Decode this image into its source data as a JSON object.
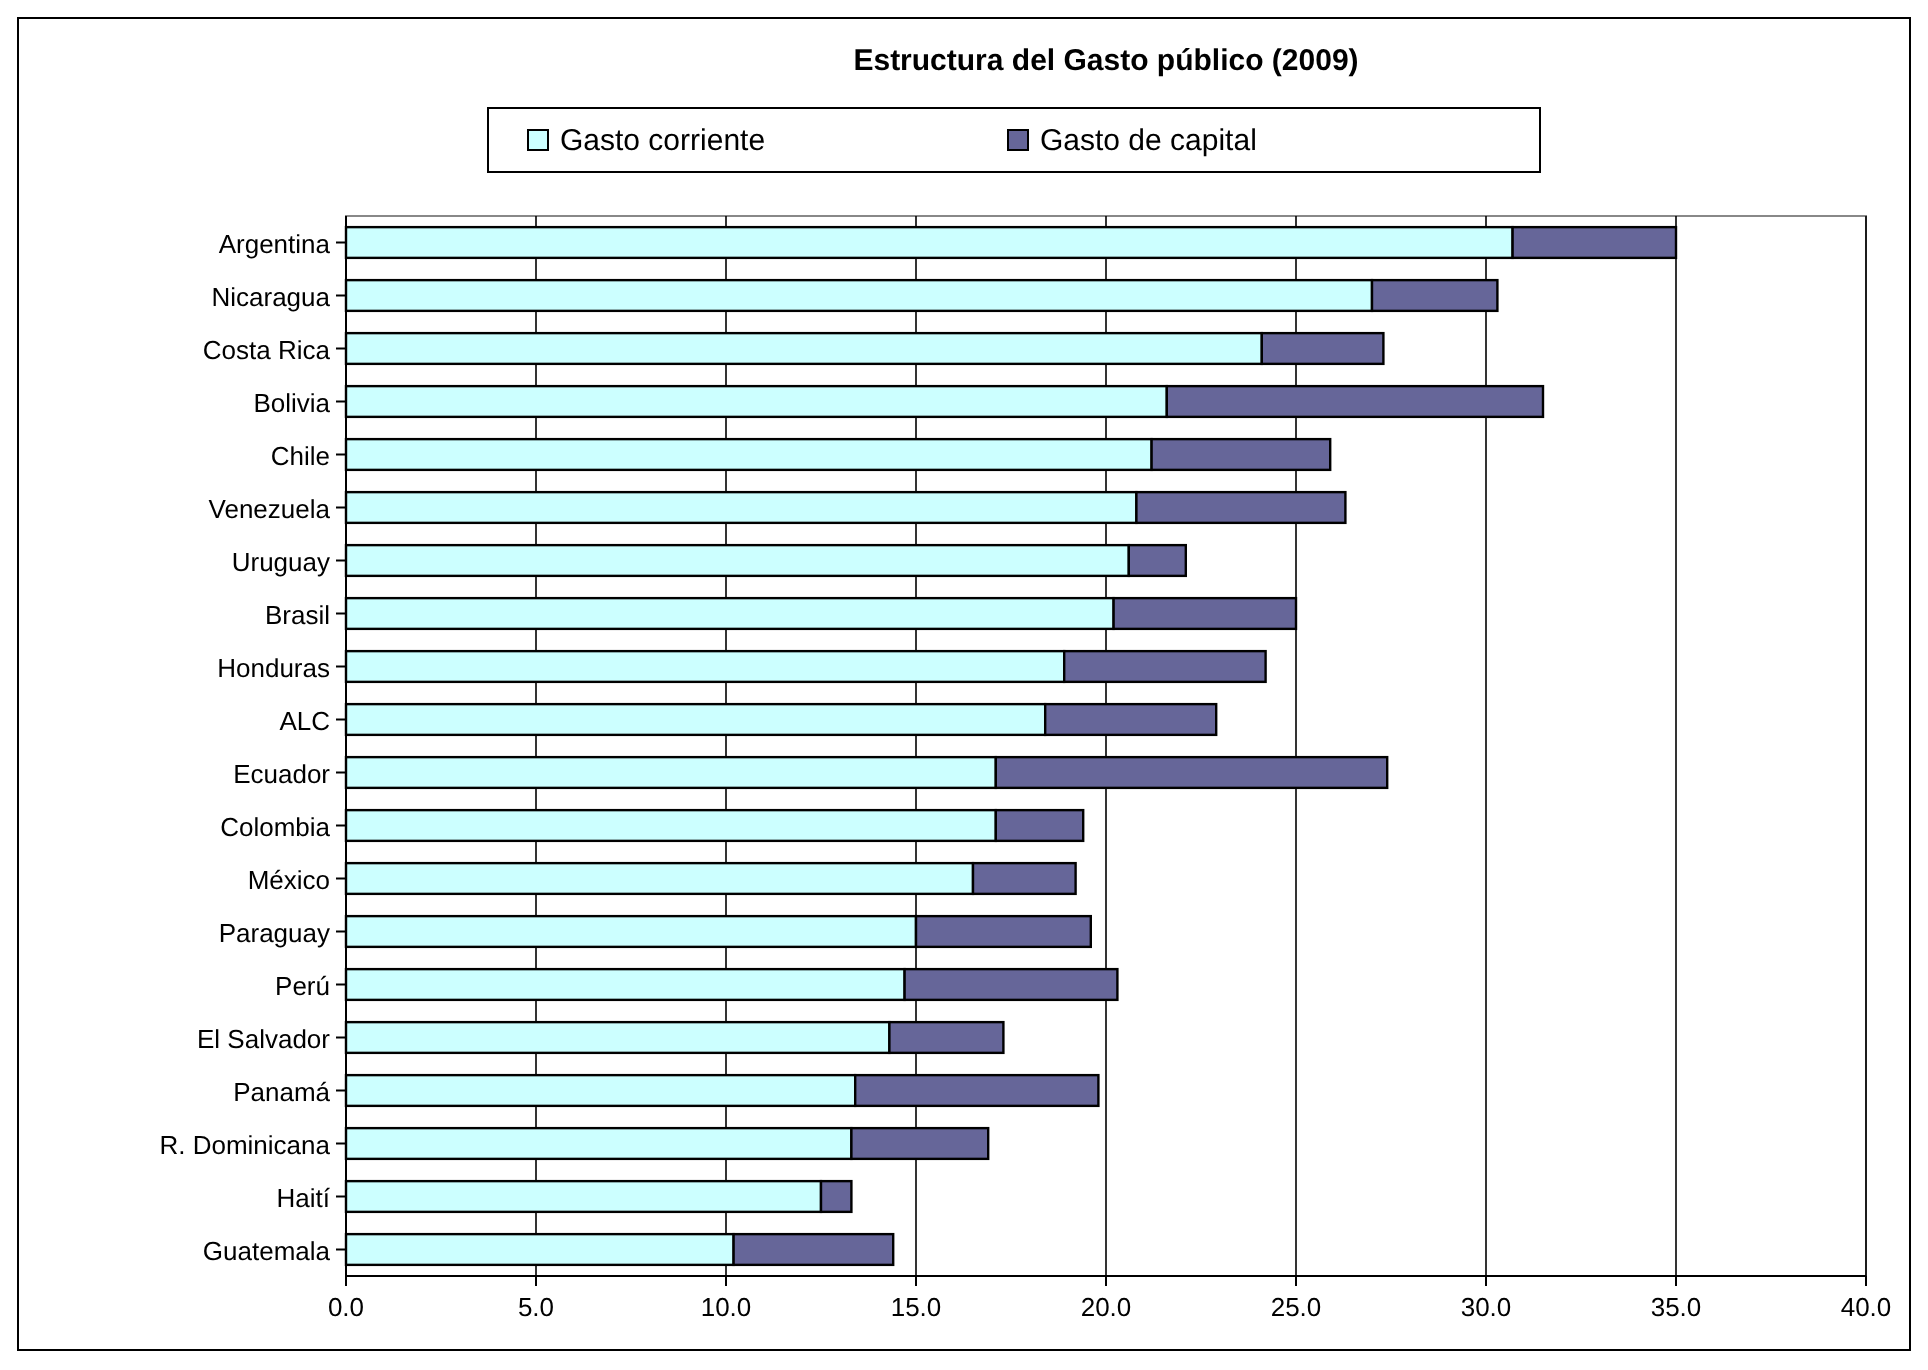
{
  "chart_data": {
    "type": "bar",
    "orientation": "horizontal",
    "stacked": true,
    "title": "Estructura del Gasto público (2009)",
    "categories": [
      "Argentina",
      "Nicaragua",
      "Costa Rica",
      "Bolivia",
      "Chile",
      "Venezuela",
      "Uruguay",
      "Brasil",
      "Honduras",
      "ALC",
      "Ecuador",
      "Colombia",
      "México",
      "Paraguay",
      "Perú",
      "El Salvador",
      "Panamá",
      "R. Dominicana",
      "Haití",
      "Guatemala"
    ],
    "series": [
      {
        "name": "Gasto corriente",
        "color": "#ccffff",
        "values": [
          30.7,
          27.0,
          24.1,
          21.6,
          21.2,
          20.8,
          20.6,
          20.2,
          18.9,
          18.4,
          17.1,
          17.1,
          16.5,
          15.0,
          14.7,
          14.3,
          13.4,
          13.3,
          12.5,
          10.2
        ]
      },
      {
        "name": "Gasto de capital",
        "color": "#666699",
        "values": [
          4.3,
          3.3,
          3.2,
          9.9,
          4.7,
          5.5,
          1.5,
          4.8,
          5.3,
          4.5,
          10.3,
          2.3,
          2.7,
          4.6,
          5.6,
          3.0,
          6.4,
          3.6,
          0.8,
          4.2
        ]
      }
    ],
    "xlim": [
      0,
      40
    ],
    "xticks": [
      {
        "value": 0,
        "label": "0.0"
      },
      {
        "value": 5,
        "label": "5.0"
      },
      {
        "value": 10,
        "label": "10.0"
      },
      {
        "value": 15,
        "label": "15.0"
      },
      {
        "value": 20,
        "label": "20.0"
      },
      {
        "value": 25,
        "label": "25.0"
      },
      {
        "value": 30,
        "label": "30.0"
      },
      {
        "value": 35,
        "label": "35.0"
      },
      {
        "value": 40,
        "label": "40.0"
      }
    ],
    "grid": "x",
    "legend": "top"
  }
}
